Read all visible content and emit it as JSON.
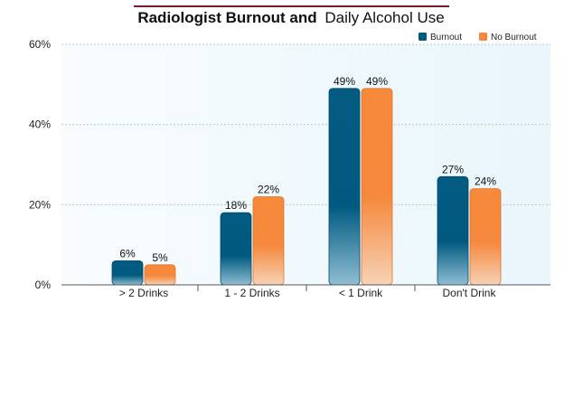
{
  "chart_data": {
    "type": "bar",
    "title_bold": "Radiologist Burnout and",
    "title_regular": "Daily Alcohol Use",
    "categories": [
      "> 2 Drinks",
      "1 - 2 Drinks",
      "< 1 Drink",
      "Don't Drink"
    ],
    "series": [
      {
        "name": "Burnout",
        "values": [
          6,
          18,
          49,
          27
        ],
        "labels": [
          "6%",
          "18%",
          "49%",
          "27%"
        ],
        "color": "#005a80"
      },
      {
        "name": "No Burnout",
        "values": [
          5,
          22,
          49,
          24
        ],
        "labels": [
          "5%",
          "22%",
          "49%",
          "24%"
        ],
        "color": "#f5883c"
      }
    ],
    "y_ticks": [
      0,
      20,
      40,
      60
    ],
    "y_tick_labels": [
      "0%",
      "20%",
      "40%",
      "60%"
    ],
    "ylim": [
      0,
      60
    ],
    "grid": true,
    "legend_position": "top-right",
    "title_rule_color": "#7a1a2e",
    "plot_background": "#eef8fd"
  }
}
